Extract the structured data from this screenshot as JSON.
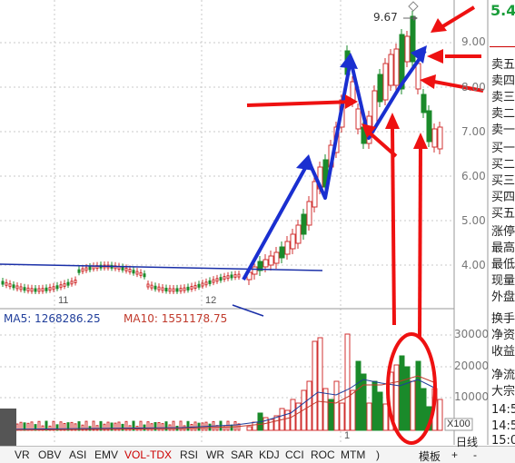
{
  "price_panel": {
    "current_price_partial": "5.4",
    "current_price_color": "#1a9d3a",
    "y_ticks": [
      "9.00",
      "8.00",
      "7.00",
      "6.00",
      "5.00",
      "4.00"
    ],
    "high_marker": "9.67",
    "date_labels": [
      "11",
      "12",
      "1"
    ]
  },
  "volume_panel": {
    "ma5_label": "MA5: 1268286.25",
    "ma10_label": "MA10: 1551178.75",
    "ma5_color": "#1f3d9a",
    "ma10_color": "#c0392b",
    "y_ticks": [
      "30000",
      "20000",
      "10000"
    ],
    "unit_label": "X100"
  },
  "order_book": {
    "sell_labels": [
      "卖五",
      "卖四",
      "卖三",
      "卖二",
      "卖一"
    ],
    "buy_labels": [
      "买一",
      "买二",
      "买三",
      "买四",
      "买五"
    ],
    "stat_labels": [
      "涨停",
      "最高",
      "最低",
      "现量",
      "外盘"
    ],
    "extra_labels": [
      "换手",
      "净资",
      "收益",
      "净流",
      "大宗"
    ],
    "times": [
      "14:5",
      "14:5",
      "15:0"
    ]
  },
  "tabs": [
    "VR",
    "OBV",
    "ASI",
    "EMV",
    "VOL-TDX",
    "RSI",
    "WR",
    "SAR",
    "KDJ",
    "CCI",
    "ROC",
    "MTM",
    ")"
  ],
  "active_tab": "VOL-TDX",
  "bottom_buttons": {
    "template": "模板",
    "plus": "+",
    "minus": "-",
    "daily": "日线"
  },
  "colors": {
    "up": "#d03030",
    "down": "#1a8a2a",
    "annotation_red": "#ee1111",
    "annotation_blue": "#1a2fd0"
  }
}
